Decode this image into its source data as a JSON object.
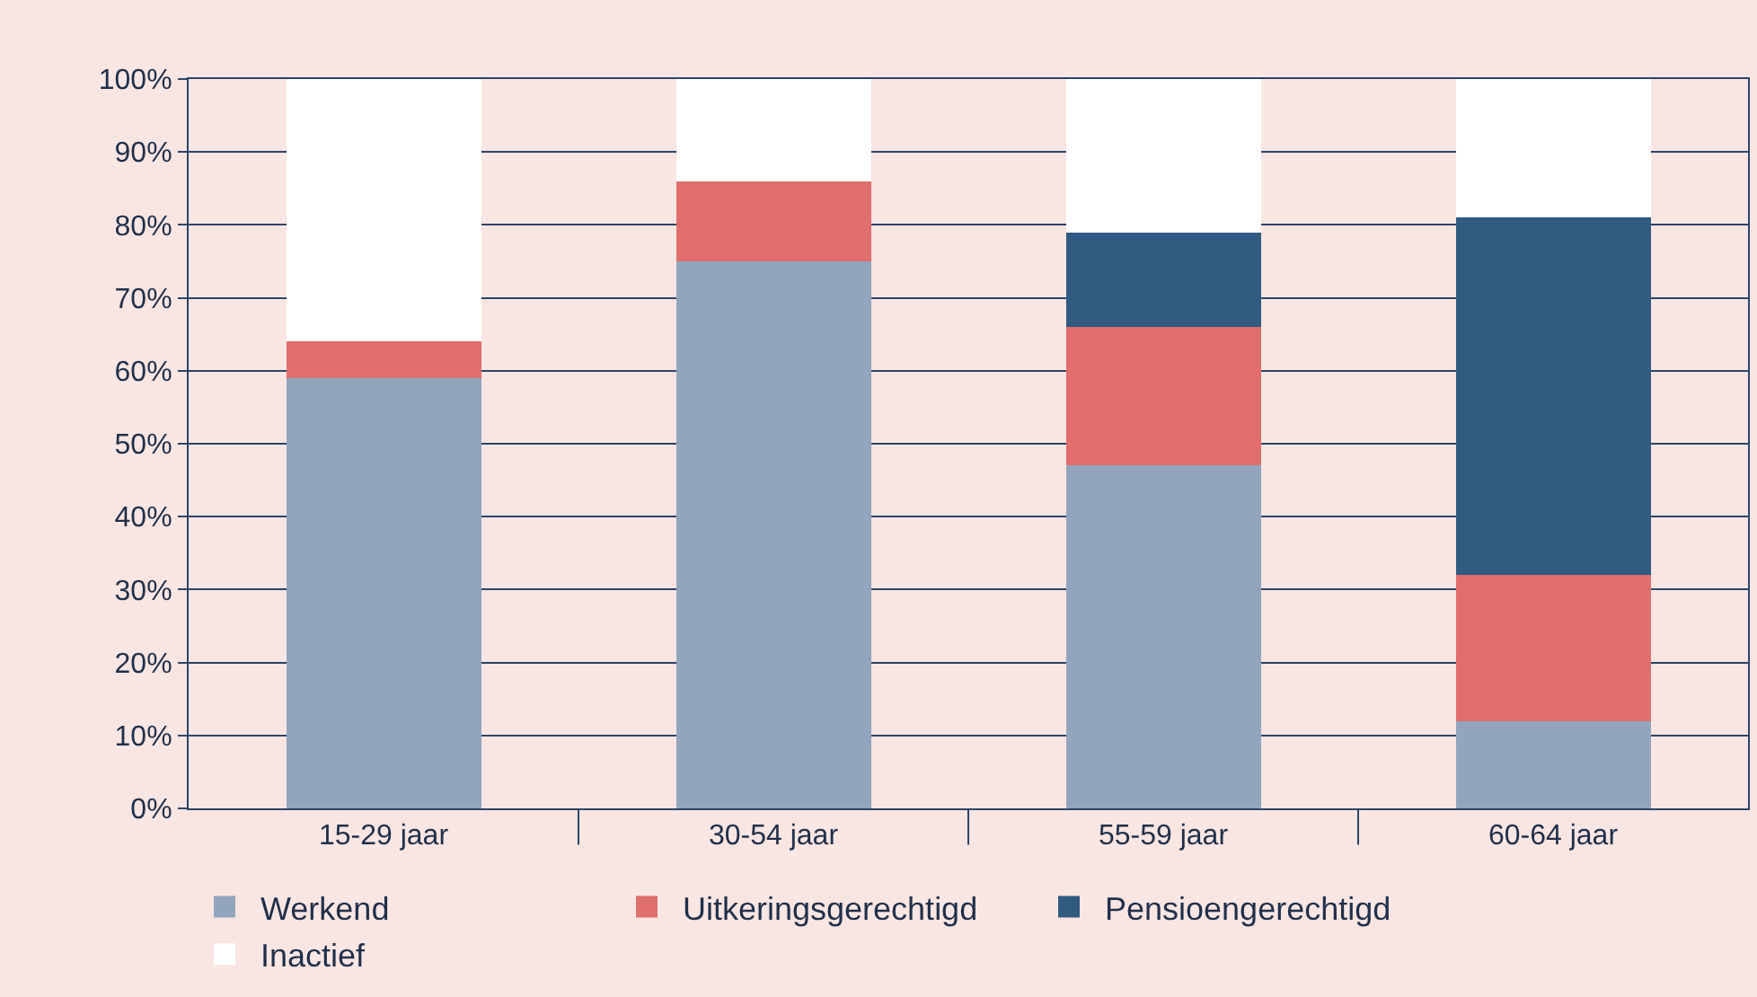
{
  "chart_data": {
    "type": "bar",
    "stacked": true,
    "categories": [
      "15-29 jaar",
      "30-54 jaar",
      "55-59 jaar",
      "60-64 jaar"
    ],
    "series": [
      {
        "name": "Werkend",
        "color": "#91a5bf",
        "values": [
          59,
          75,
          47,
          12
        ]
      },
      {
        "name": "Uitkeringsgerechtigd",
        "color": "#e06e6b",
        "values": [
          5,
          11,
          19,
          20
        ]
      },
      {
        "name": "Pensioengerechtigd",
        "color": "#2f5b82",
        "values": [
          0,
          0,
          13,
          49
        ]
      },
      {
        "name": "Inactief",
        "color": "#ffffff",
        "values": [
          36,
          14,
          21,
          19
        ]
      }
    ],
    "ylim": [
      0,
      100
    ],
    "yticks": [
      {
        "value": 0,
        "label": "0%"
      },
      {
        "value": 10,
        "label": "10%"
      },
      {
        "value": 20,
        "label": "20%"
      },
      {
        "value": 30,
        "label": "30%"
      },
      {
        "value": 40,
        "label": "40%"
      },
      {
        "value": 50,
        "label": "50%"
      },
      {
        "value": 60,
        "label": "60%"
      },
      {
        "value": 70,
        "label": "70%"
      },
      {
        "value": 80,
        "label": "80%"
      },
      {
        "value": 90,
        "label": "90%"
      },
      {
        "value": 100,
        "label": "100%"
      }
    ],
    "grid": "y",
    "legend": "bottom"
  }
}
